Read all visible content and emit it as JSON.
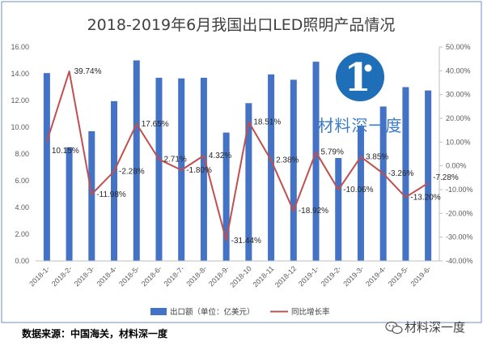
{
  "chart_data": {
    "type": "bar+line",
    "title": "2018-2019年6月我国出口LED照明产品情况",
    "categories": [
      "2018-1-",
      "2018-2-",
      "2018-3-",
      "2018-4-",
      "2018-5-",
      "2018-6-",
      "2018-7-",
      "2018-8-",
      "2018-9-",
      "2018-10",
      "2018-11",
      "2018-12",
      "2019-1-",
      "2019-2-",
      "2019-3-",
      "2019-4-",
      "2019-5-",
      "2019-6-"
    ],
    "series": [
      {
        "name": "出口额（单位：亿美元）",
        "type": "bar",
        "axis": "left",
        "color": "#4472c4",
        "values": [
          14.05,
          8.5,
          9.7,
          11.95,
          15.0,
          13.7,
          13.65,
          13.7,
          9.6,
          11.8,
          13.95,
          13.55,
          14.9,
          7.7,
          10.1,
          11.55,
          13.0,
          12.75
        ]
      },
      {
        "name": "同比增长率",
        "type": "line",
        "axis": "right",
        "color": "#c0504d",
        "values": [
          10.15,
          39.74,
          -11.98,
          -2.28,
          17.65,
          2.71,
          -1.8,
          4.32,
          -31.44,
          18.51,
          2.38,
          -18.92,
          5.79,
          -10.06,
          3.85,
          -3.26,
          -13.2,
          -7.28
        ],
        "labels": [
          "10.15%",
          "39.74%",
          "-11.98%",
          "-2.28%",
          "17.65%",
          "2.71%",
          "-1.80%",
          "4.32%",
          "-31.44%",
          "18.51%",
          "2.38%",
          "-18.92%",
          "5.79%",
          "-10.06%",
          "3.85%",
          "-3.26%",
          "-13.20%",
          "-7.28%"
        ]
      }
    ],
    "left_axis": {
      "min": 0,
      "max": 16,
      "step": 2,
      "ticks": [
        "0.00",
        "2.00",
        "4.00",
        "6.00",
        "8.00",
        "10.00",
        "12.00",
        "14.00",
        "16.00"
      ]
    },
    "right_axis": {
      "min": -40,
      "max": 50,
      "step": 10,
      "ticks": [
        "-40.00%",
        "-30.00%",
        "-20.00%",
        "-10.00%",
        "0.00%",
        "10.00%",
        "20.00%",
        "30.00%",
        "40.00%",
        "50.00%"
      ]
    },
    "grid": false,
    "legend": "bottom"
  },
  "source": "数据来源：中国海关，材料深一度",
  "watermark": {
    "logo_text": "1",
    "text": "材料深一度",
    "bottom_text": "材料深一度"
  },
  "colors": {
    "frame": "#6d8fc4",
    "line_axis": "#bfbfbf"
  }
}
